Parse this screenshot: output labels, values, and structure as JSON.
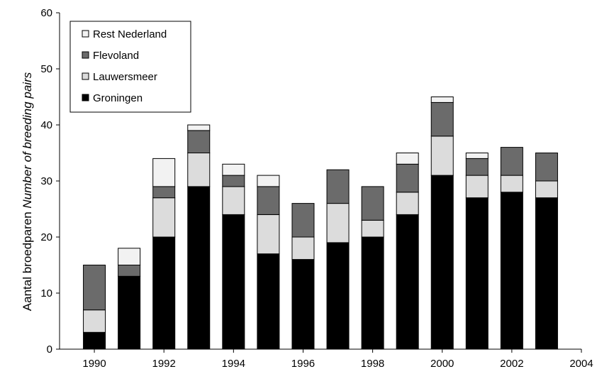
{
  "chart_data": {
    "type": "bar",
    "stacked": true,
    "title": "",
    "xlabel": "",
    "ylabel_plain": "Aantal broedparen",
    "ylabel_italic": "Number of breeding pairs",
    "xlim": [
      1989,
      2004
    ],
    "ylim": [
      0,
      60
    ],
    "x_ticks": [
      1990,
      1992,
      1994,
      1996,
      1998,
      2000,
      2002,
      2004
    ],
    "y_ticks": [
      0,
      10,
      20,
      30,
      40,
      50,
      60
    ],
    "grid": false,
    "legend_position": "top-left",
    "categories": [
      1990,
      1991,
      1992,
      1993,
      1994,
      1995,
      1996,
      1997,
      1998,
      1999,
      2000,
      2001,
      2002,
      2003
    ],
    "series": [
      {
        "name": "Groningen",
        "color": "#000000",
        "values": [
          3,
          13,
          20,
          29,
          24,
          17,
          16,
          19,
          20,
          24,
          31,
          27,
          28,
          27
        ]
      },
      {
        "name": "Lauwersmeer",
        "color": "#dcdcdc",
        "values": [
          4,
          0,
          7,
          6,
          5,
          7,
          4,
          7,
          3,
          4,
          7,
          4,
          3,
          3
        ]
      },
      {
        "name": "Flevoland",
        "color": "#6b6b6b",
        "values": [
          8,
          2,
          2,
          4,
          2,
          5,
          6,
          6,
          6,
          5,
          6,
          3,
          5,
          5
        ]
      },
      {
        "name": "Rest Nederland",
        "color": "#f2f2f2",
        "values": [
          0,
          3,
          5,
          1,
          2,
          2,
          0,
          0,
          0,
          2,
          1,
          1,
          0,
          0
        ]
      }
    ],
    "legend_order": [
      "Rest Nederland",
      "Flevoland",
      "Lauwersmeer",
      "Groningen"
    ]
  }
}
